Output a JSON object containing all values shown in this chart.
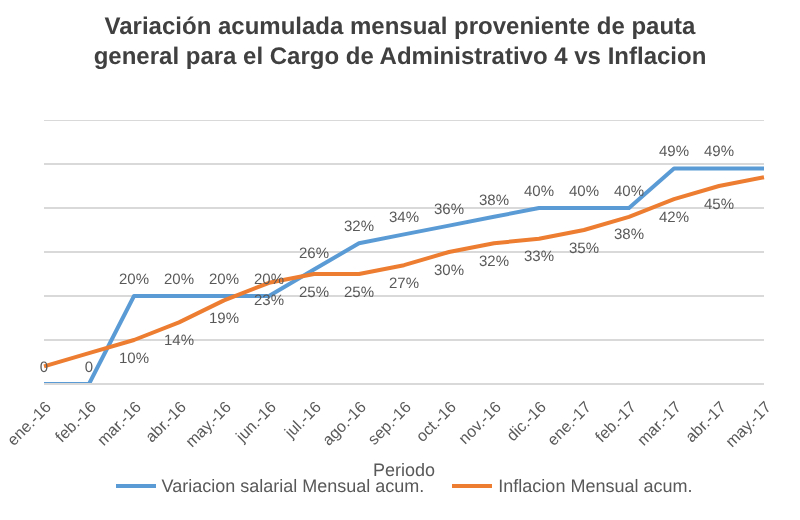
{
  "chart_data": {
    "type": "line",
    "title": "Variación acumulada mensual proveniente de pauta general para el Cargo de Administrativo 4 vs Inflacion",
    "xlabel": "Periodo",
    "categories": [
      "ene.-16",
      "feb.-16",
      "mar.-16",
      "abr.-16",
      "may.-16",
      "jun.-16",
      "jul.-16",
      "ago.-16",
      "sep.-16",
      "oct.-16",
      "nov.-16",
      "dic.-16",
      "ene.-17",
      "feb.-17",
      "mar.-17",
      "abr.-17",
      "may.-17"
    ],
    "series": [
      {
        "name": "Variacion salarial Mensual acum.",
        "color": "#5b9bd5",
        "values": [
          0,
          0,
          20,
          20,
          20,
          20,
          26,
          32,
          34,
          36,
          38,
          40,
          40,
          40,
          49,
          49,
          49
        ],
        "value_labels": [
          "0",
          "0",
          "20%",
          "20%",
          "20%",
          "20%",
          "26%",
          "32%",
          "34%",
          "36%",
          "38%",
          "40%",
          "40%",
          "40%",
          "49%",
          "49%",
          null
        ]
      },
      {
        "name": "Inflacion Mensual acum.",
        "color": "#ed7d31",
        "values": [
          4,
          7,
          10,
          14,
          19,
          23,
          25,
          25,
          27,
          30,
          32,
          33,
          35,
          38,
          42,
          45,
          47
        ],
        "value_labels": [
          null,
          null,
          "10%",
          "14%",
          "19%",
          "23%",
          "25%",
          "25%",
          "27%",
          "30%",
          "32%",
          "33%",
          "35%",
          "38%",
          "42%",
          "45%",
          null
        ]
      }
    ],
    "ylim": [
      0,
      60
    ],
    "yticks": [
      {
        "value": 0,
        "label": null
      },
      {
        "value": 10,
        "label": null
      },
      {
        "value": 20,
        "label": null
      },
      {
        "value": 30,
        "label": null
      },
      {
        "value": 40,
        "label": null
      },
      {
        "value": 50,
        "label": null
      },
      {
        "value": 60,
        "label": null
      }
    ],
    "tick_labels": "x",
    "grid": "y",
    "legend": "bottom",
    "marker": "none",
    "line_style": "solid"
  }
}
